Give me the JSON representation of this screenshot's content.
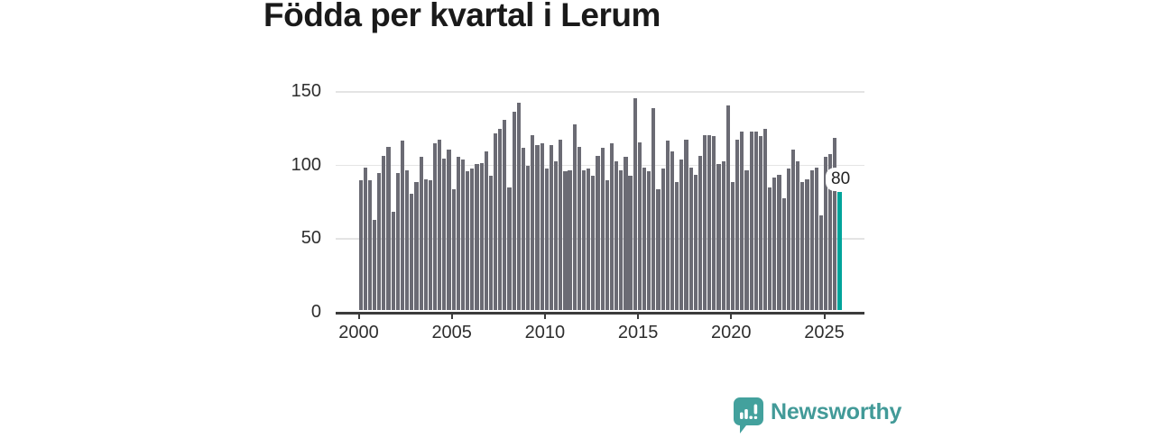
{
  "title": "Födda per kvartal i Lerum",
  "chart_data": {
    "type": "bar",
    "title": "Födda per kvartal i Lerum",
    "frequency": "quarterly",
    "x_start": "2000-Q1",
    "x_end": "2025-Q4",
    "x_ticks": [
      "2000",
      "2005",
      "2010",
      "2015",
      "2020",
      "2025"
    ],
    "y_ticks": [
      0,
      50,
      100,
      150
    ],
    "ylim": [
      0,
      150
    ],
    "grid": true,
    "legend": "none",
    "bar_color": "#6b6b74",
    "highlight_color": "#00a49b",
    "highlight_index_from_end": 1,
    "last_value_label": "80",
    "series": [
      {
        "name": "Födda per kvartal",
        "values": [
          88,
          97,
          88,
          61,
          93,
          105,
          111,
          67,
          93,
          115,
          95,
          79,
          87,
          104,
          89,
          88,
          113,
          116,
          103,
          109,
          82,
          104,
          102,
          94,
          96,
          99,
          100,
          108,
          91,
          120,
          123,
          129,
          83,
          135,
          141,
          110,
          98,
          119,
          112,
          113,
          96,
          112,
          101,
          116,
          94,
          95,
          126,
          111,
          95,
          96,
          91,
          105,
          110,
          88,
          113,
          101,
          95,
          104,
          91,
          144,
          114,
          97,
          94,
          137,
          82,
          96,
          115,
          108,
          87,
          102,
          116,
          97,
          92,
          105,
          119,
          119,
          118,
          99,
          101,
          139,
          87,
          116,
          121,
          95,
          121,
          121,
          118,
          123,
          83,
          90,
          92,
          76,
          96,
          109,
          101,
          87,
          89,
          95,
          97,
          64,
          104,
          106,
          117,
          80
        ]
      }
    ]
  },
  "annotation": {
    "last_value": "80"
  },
  "branding": {
    "logo_text": "Newsworthy",
    "logo_color": "#429a98",
    "icon_color": "#43a19d"
  }
}
